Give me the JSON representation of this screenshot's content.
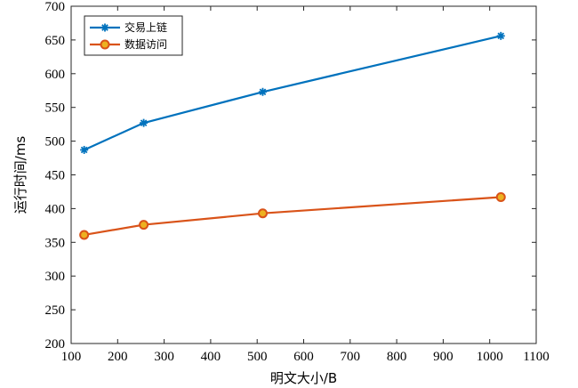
{
  "chart_data": {
    "type": "line",
    "xlabel": "明文大小/B",
    "ylabel": "运行时间/ms",
    "xlim": [
      100,
      1100
    ],
    "ylim": [
      200,
      700
    ],
    "xticks": [
      100,
      200,
      300,
      400,
      500,
      600,
      700,
      800,
      900,
      1000,
      1100
    ],
    "yticks": [
      200,
      250,
      300,
      350,
      400,
      450,
      500,
      550,
      600,
      650,
      700
    ],
    "grid": false,
    "legend_position": "top-left",
    "series": [
      {
        "name": "交易上链",
        "color": "#0072BD",
        "marker": "asterisk",
        "x": [
          128,
          256,
          512,
          1024
        ],
        "y": [
          487,
          527,
          573,
          656
        ]
      },
      {
        "name": "数据访问",
        "color": "#D95319",
        "marker_fill": "#EDB120",
        "marker": "circle",
        "x": [
          128,
          256,
          512,
          1024
        ],
        "y": [
          361,
          376,
          393,
          417
        ]
      }
    ]
  }
}
